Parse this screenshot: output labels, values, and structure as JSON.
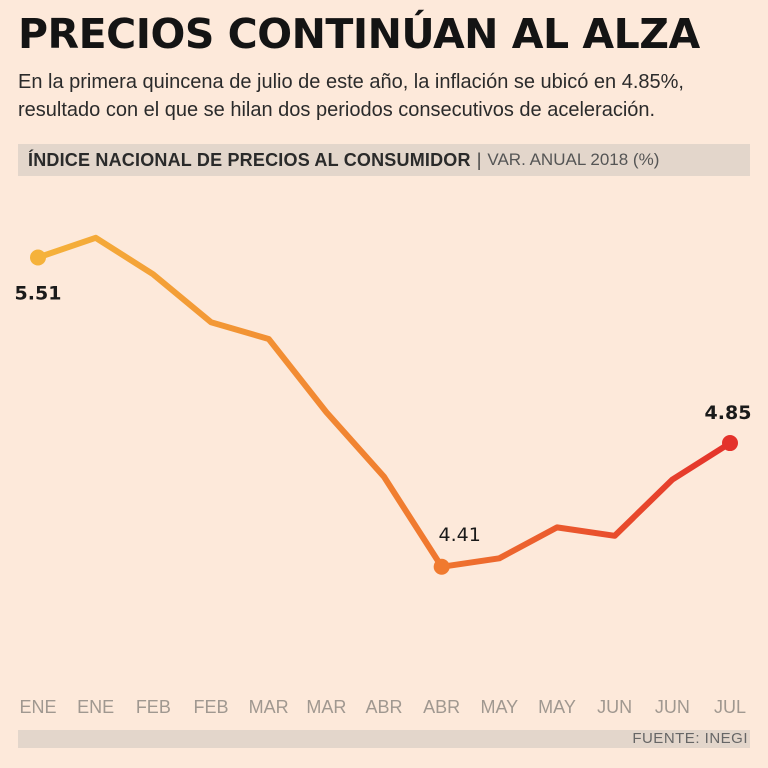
{
  "title": "PRECIOS CONTINÚAN AL ALZA",
  "subtitle": "En la primera quincena de julio de este año, la inflación se ubicó en 4.85%, resultado con el que se hilan dos periodos consecutivos de aceleración.",
  "header": {
    "bold": "ÍNDICE NACIONAL DE PRECIOS AL CONSUMIDOR",
    "separator": "|",
    "light": "VAR. ANUAL 2018 (%)"
  },
  "source": "FUENTE: INEGI",
  "chart_data": {
    "type": "line",
    "title": "ÍNDICE NACIONAL DE PRECIOS AL CONSUMIDOR",
    "ylabel": "VAR. ANUAL 2018 (%)",
    "xlabel": "",
    "categories": [
      "ENE",
      "ENE",
      "FEB",
      "FEB",
      "MAR",
      "MAR",
      "ABR",
      "ABR",
      "MAY",
      "MAY",
      "JUN",
      "JUN",
      "JUL"
    ],
    "values": [
      5.51,
      5.58,
      5.45,
      5.28,
      5.22,
      4.96,
      4.73,
      4.41,
      4.44,
      4.55,
      4.52,
      4.72,
      4.85
    ],
    "ylim": [
      4.05,
      5.75
    ],
    "grid": false,
    "annotations": [
      {
        "index": 0,
        "label": "5.51"
      },
      {
        "index": 7,
        "label": "4.41"
      },
      {
        "index": 12,
        "label": "4.85"
      }
    ],
    "colors": {
      "start": "#f5b23b",
      "mid": "#f07a2f",
      "end": "#e4322b"
    }
  }
}
